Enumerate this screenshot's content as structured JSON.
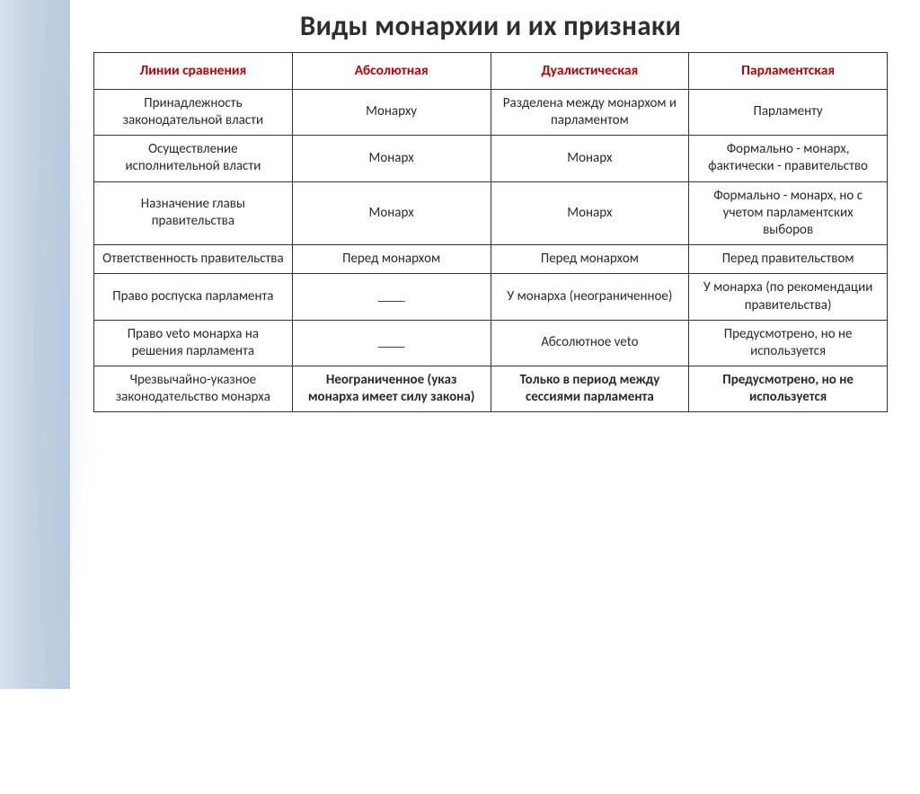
{
  "title": "Виды монархии и их признаки",
  "headers": {
    "col1": "Линии сравнения",
    "col2": "Абсолютная",
    "col3": "Дуалистическая",
    "col4": "Парламентская"
  },
  "rows": [
    {
      "label": "Принадлежность законодательной власти",
      "c2": "Монарху",
      "c3": "Разделена между монархом и парламентом",
      "c4": "Парламенту"
    },
    {
      "label": "Осуществление исполнительной власти",
      "c2": "Монарх",
      "c3": "Монарх",
      "c4": "Формально - монарх, фактически - правительство"
    },
    {
      "label": "Назначение главы правительства",
      "c2": "Монарх",
      "c3": "Монарх",
      "c4": "Формально - монарх, но с учетом парламентских выборов"
    },
    {
      "label": "Ответственность правительства",
      "c2": "Перед  монархом",
      "c3": "Перед монархом",
      "c4": "Перед правительством"
    },
    {
      "label": "Право роспуска парламента",
      "c2": "____",
      "c3": "У монарха (неограниченное)",
      "c4": "У монарха (по рекомендации правительства)"
    },
    {
      "label": "Право veto монарха на решения парламента",
      "c2": "____",
      "c3": "Абсолютное veto",
      "c4": "Предусмотрено, но не используется"
    },
    {
      "label": "Чрезвычайно-указное законодательство монарха",
      "c2": "Неограниченное (указ монарха имеет силу закона)",
      "c2_bold": true,
      "c3": "Только в период между сессиями парламента",
      "c3_bold": true,
      "c4": "Предусмотрено, но не используется",
      "c4_bold": true
    }
  ],
  "colors": {
    "header_text": "#c00000",
    "border": "#333333",
    "sidebar_start": "#d8e2ed",
    "sidebar_end": "#b8cade"
  }
}
